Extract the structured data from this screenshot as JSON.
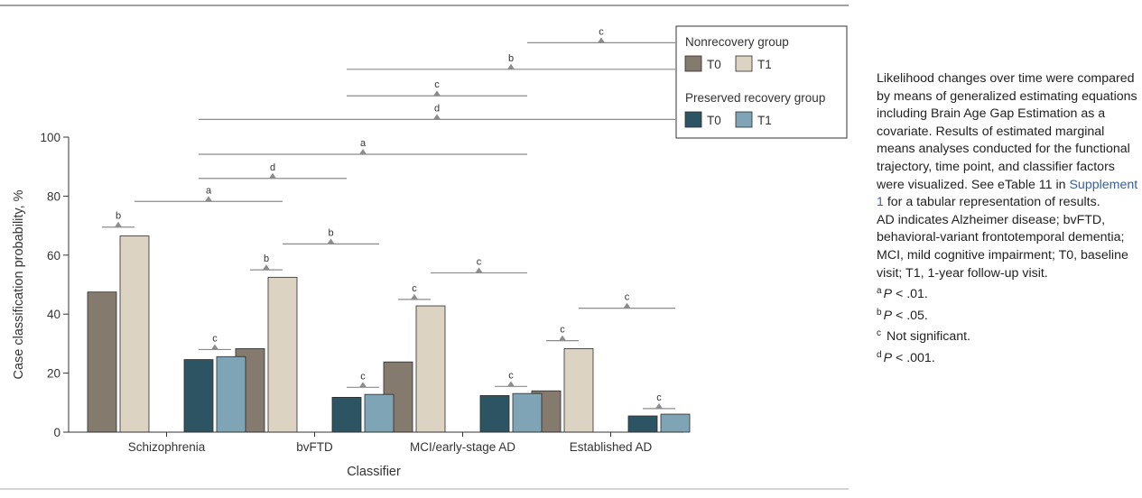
{
  "chart_data": {
    "type": "bar",
    "categories": [
      "Schizophrenia",
      "bvFTD",
      "MCI/early-stage AD",
      "Established AD"
    ],
    "series": [
      {
        "name": "T0",
        "group": "Nonrecovery group",
        "color": "#857a6e",
        "values": [
          47.5,
          28.3,
          23.8,
          14.0
        ]
      },
      {
        "name": "T1",
        "group": "Nonrecovery group",
        "color": "#dcd3c2",
        "values": [
          66.5,
          52.5,
          42.8,
          28.3
        ]
      },
      {
        "name": "T0",
        "group": "Preserved recovery group",
        "color": "#2c5462",
        "values": [
          24.6,
          11.8,
          12.4,
          5.5
        ]
      },
      {
        "name": "T1",
        "group": "Preserved recovery group",
        "color": "#7ea4b5",
        "values": [
          25.6,
          12.8,
          13.1,
          6.1
        ]
      }
    ],
    "xlabel": "Classifier",
    "ylabel": "Case classification probability, %",
    "ylim": [
      0,
      100
    ],
    "yticks": [
      0,
      20,
      40,
      60,
      80,
      100
    ],
    "grid": false,
    "legend": {
      "placement": "top-right",
      "groups": [
        {
          "title": "Nonrecovery group",
          "items": [
            "T0",
            "T1"
          ]
        },
        {
          "title": "Preserved recovery group",
          "items": [
            "T0",
            "T1"
          ]
        }
      ]
    },
    "comparisons": [
      {
        "category_from": "Schizophrenia",
        "bar_from": 0,
        "category_to": "Schizophrenia",
        "bar_to": 1,
        "label": "b",
        "level": 69.5
      },
      {
        "category_from": "Schizophrenia",
        "bar_from": 2,
        "category_to": "Schizophrenia",
        "bar_to": 3,
        "label": "c",
        "level": 28
      },
      {
        "category_from": "Schizophrenia",
        "bar_from": 1,
        "category_to": "bvFTD",
        "bar_to": 1,
        "label": "a",
        "level": 78.2
      },
      {
        "category_from": "Schizophrenia",
        "bar_from": 2,
        "category_to": "bvFTD",
        "bar_to": 2,
        "label": "d",
        "level": 86
      },
      {
        "category_from": "Schizophrenia",
        "bar_from": 2,
        "category_to": "MCI/early-stage AD",
        "bar_to": 3,
        "label": "a",
        "level": 94.2
      },
      {
        "category_from": "Schizophrenia",
        "bar_from": 2,
        "category_to": "Established AD",
        "bar_to": 3,
        "label": "d",
        "level": 106
      },
      {
        "category_from": "bvFTD",
        "bar_from": 2,
        "category_to": "MCI/early-stage AD",
        "bar_to": 3,
        "label": "c",
        "level": 114
      },
      {
        "category_from": "bvFTD",
        "bar_from": 2,
        "category_to": "Established AD",
        "bar_to": 3,
        "label": "b",
        "level": 123
      },
      {
        "category_from": "MCI/early-stage AD",
        "bar_from": 3,
        "category_to": "Established AD",
        "bar_to": 3,
        "label": "c",
        "level": 132
      },
      {
        "category_from": "bvFTD",
        "bar_from": 0,
        "category_to": "bvFTD",
        "bar_to": 1,
        "label": "b",
        "level": 55
      },
      {
        "category_from": "bvFTD",
        "bar_from": 1,
        "category_to": "bvFTD",
        "bar_to": 3,
        "label": "b",
        "level": 63.8
      },
      {
        "category_from": "bvFTD",
        "bar_from": 2,
        "category_to": "bvFTD",
        "bar_to": 3,
        "label": "c",
        "level": 15.2
      },
      {
        "category_from": "MCI/early-stage AD",
        "bar_from": 0,
        "category_to": "MCI/early-stage AD",
        "bar_to": 1,
        "label": "c",
        "level": 45
      },
      {
        "category_from": "MCI/early-stage AD",
        "bar_from": 1,
        "category_to": "MCI/early-stage AD",
        "bar_to": 3,
        "label": "c",
        "level": 54
      },
      {
        "category_from": "MCI/early-stage AD",
        "bar_from": 2,
        "category_to": "MCI/early-stage AD",
        "bar_to": 3,
        "label": "c",
        "level": 15.5
      },
      {
        "category_from": "Established AD",
        "bar_from": 0,
        "category_to": "Established AD",
        "bar_to": 1,
        "label": "c",
        "level": 31
      },
      {
        "category_from": "Established AD",
        "bar_from": 1,
        "category_to": "Established AD",
        "bar_to": 3,
        "label": "c",
        "level": 42
      },
      {
        "category_from": "Established AD",
        "bar_from": 2,
        "category_to": "Established AD",
        "bar_to": 3,
        "label": "c",
        "level": 8
      }
    ]
  },
  "notes": {
    "description_part1": "Likelihood changes over time were compared by means of generalized estimating equations including Brain Age Gap Estimation as a covariate. Results of estimated marginal means analyses conducted for the functional trajectory, time point, and classifier factors were visualized. See eTable 11 in ",
    "supplement_link": "Supplement 1",
    "description_part2": " for a tabular representation of results.",
    "abbreviations": "AD indicates Alzheimer disease; bvFTD, behavioral-variant frontotemporal dementia; MCI, mild cognitive impairment; T0, baseline visit; T1, 1-year follow-up visit.",
    "footnotes": [
      {
        "mark": "a",
        "p_label": "P",
        "text": " < .01."
      },
      {
        "mark": "b",
        "p_label": "P",
        "text": " < .05."
      },
      {
        "mark": "c",
        "p_label": "",
        "text": " Not significant."
      },
      {
        "mark": "d",
        "p_label": "P",
        "text": " < .001."
      }
    ]
  }
}
